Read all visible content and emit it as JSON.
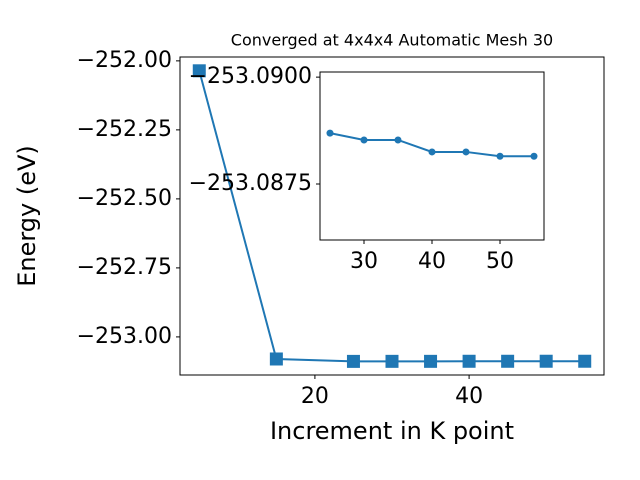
{
  "chart_data": [
    {
      "type": "line",
      "title": "Converged at 4x4x4 Automatic Mesh 30",
      "x_label": "Increment in K point",
      "y_label": "Energy (eV)",
      "color": "#1f77b4",
      "marker": "square",
      "x": [
        5,
        15,
        25,
        30,
        35,
        40,
        45,
        50,
        55
      ],
      "values": [
        -252.036,
        -253.08,
        -253.08869,
        -253.08853,
        -253.08853,
        -253.08825,
        -253.08825,
        -253.08815,
        -253.08815
      ],
      "xlim": [
        2.5,
        57.5
      ],
      "xticks": [
        20,
        40
      ],
      "ylim": [
        -253.138,
        -251.986
      ],
      "yticks": [
        {
          "value": -253.0,
          "label": "−253.00"
        },
        {
          "value": -252.75,
          "label": "−252.75"
        },
        {
          "value": -252.5,
          "label": "−252.50"
        },
        {
          "value": -252.25,
          "label": "−252.25"
        },
        {
          "value": -252.0,
          "label": "−252.00"
        }
      ]
    },
    {
      "type": "line",
      "color": "#1f77b4",
      "marker": "circle",
      "x": [
        25,
        30,
        35,
        40,
        45,
        50,
        55
      ],
      "values": [
        -253.08869,
        -253.08853,
        -253.08853,
        -253.08825,
        -253.08825,
        -253.08815,
        -253.08815
      ],
      "xlim": [
        23.53,
        56.47
      ],
      "xticks": [
        30,
        40,
        50
      ],
      "ylim": [
        -253.08619,
        -253.09012
      ],
      "yticks": [
        {
          "value": -253.0875,
          "label": "−253.0875"
        },
        {
          "value": -253.09,
          "label": "−253.0900"
        }
      ]
    }
  ]
}
